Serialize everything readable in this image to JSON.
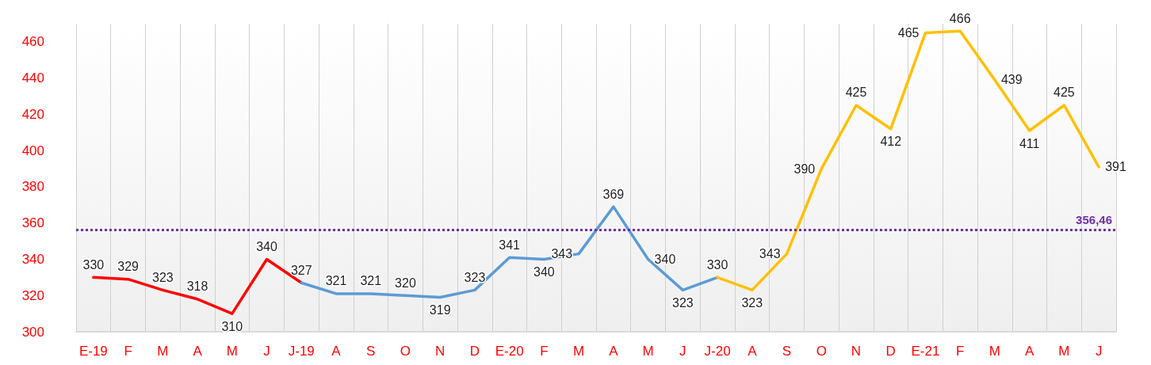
{
  "chart_data": {
    "type": "line",
    "categories": [
      "E-19",
      "F",
      "M",
      "A",
      "M",
      "J",
      "J-19",
      "A",
      "S",
      "O",
      "N",
      "D",
      "E-20",
      "F",
      "M",
      "A",
      "M",
      "J",
      "J-20",
      "A",
      "S",
      "O",
      "N",
      "D",
      "E-21",
      "F",
      "M",
      "A",
      "M",
      "J"
    ],
    "series": [
      {
        "color": "#ff0000",
        "values": [
          330,
          329,
          323,
          318,
          310,
          340,
          327,
          null,
          null,
          null,
          null,
          null,
          null,
          null,
          null,
          null,
          null,
          null,
          null,
          null,
          null,
          null,
          null,
          null,
          null,
          null,
          null,
          null,
          null,
          null
        ],
        "value_labels": [
          "330",
          "329",
          "323",
          "318",
          "310",
          "340",
          "327",
          null,
          null,
          null,
          null,
          null,
          null,
          null,
          null,
          null,
          null,
          null,
          null,
          null,
          null,
          null,
          null,
          null,
          null,
          null,
          null,
          null,
          null,
          null
        ]
      },
      {
        "color": "#5b9bd5",
        "values": [
          null,
          null,
          null,
          null,
          null,
          null,
          327,
          321,
          321,
          320,
          319,
          323,
          341,
          340,
          343,
          369,
          340,
          323,
          330,
          null,
          null,
          null,
          null,
          null,
          null,
          null,
          null,
          null,
          null,
          null
        ],
        "value_labels": [
          null,
          null,
          null,
          null,
          null,
          null,
          null,
          "321",
          "321",
          "320",
          "319",
          "323",
          "341",
          "340",
          "343",
          "369",
          "340",
          "323",
          "330",
          null,
          null,
          null,
          null,
          null,
          null,
          null,
          null,
          null,
          null,
          null
        ]
      },
      {
        "color": "#ffc000",
        "values": [
          null,
          null,
          null,
          null,
          null,
          null,
          null,
          null,
          null,
          null,
          null,
          null,
          null,
          null,
          null,
          null,
          null,
          null,
          330,
          323,
          343,
          390,
          425,
          412,
          465,
          466,
          439,
          411,
          425,
          391
        ],
        "value_labels": [
          null,
          null,
          null,
          null,
          null,
          null,
          null,
          null,
          null,
          null,
          null,
          null,
          null,
          null,
          null,
          null,
          null,
          null,
          null,
          "323",
          "343",
          "390",
          "425",
          "412",
          "465",
          "466",
          "439",
          "411",
          "425",
          "391"
        ]
      }
    ],
    "ylim": [
      300,
      470
    ],
    "yticks": [
      300,
      320,
      340,
      360,
      380,
      400,
      420,
      440,
      460
    ],
    "ref_lines": [
      {
        "axis": "y",
        "value": 356.46,
        "label": "356,46",
        "color": "#7030a0",
        "line_style": "dotted"
      }
    ],
    "grid": "x",
    "marker": "none",
    "line_style": "solid"
  }
}
